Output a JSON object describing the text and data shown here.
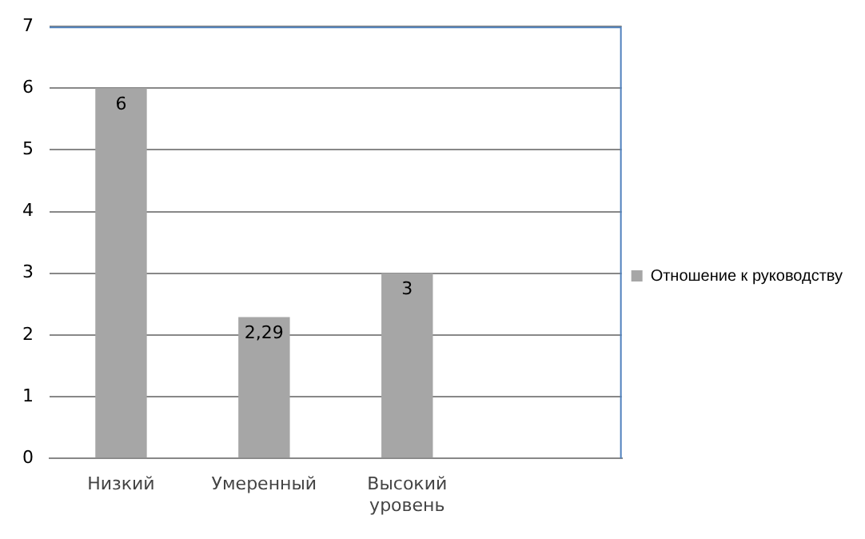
{
  "chart_data": {
    "type": "bar",
    "categories": [
      "Низкий",
      "Умеренный",
      "Высокий уровень",
      null
    ],
    "series": [
      {
        "name": "Отношение к руководству",
        "color": "#a6a6a6",
        "values": [
          6,
          2.29,
          3,
          null
        ]
      }
    ],
    "value_labels": [
      "6",
      "2,29",
      "3",
      null
    ],
    "ylim": [
      0,
      7
    ],
    "yticks": [
      0,
      1,
      2,
      3,
      4,
      5,
      6,
      7
    ],
    "grid": "y",
    "legend": "right"
  }
}
